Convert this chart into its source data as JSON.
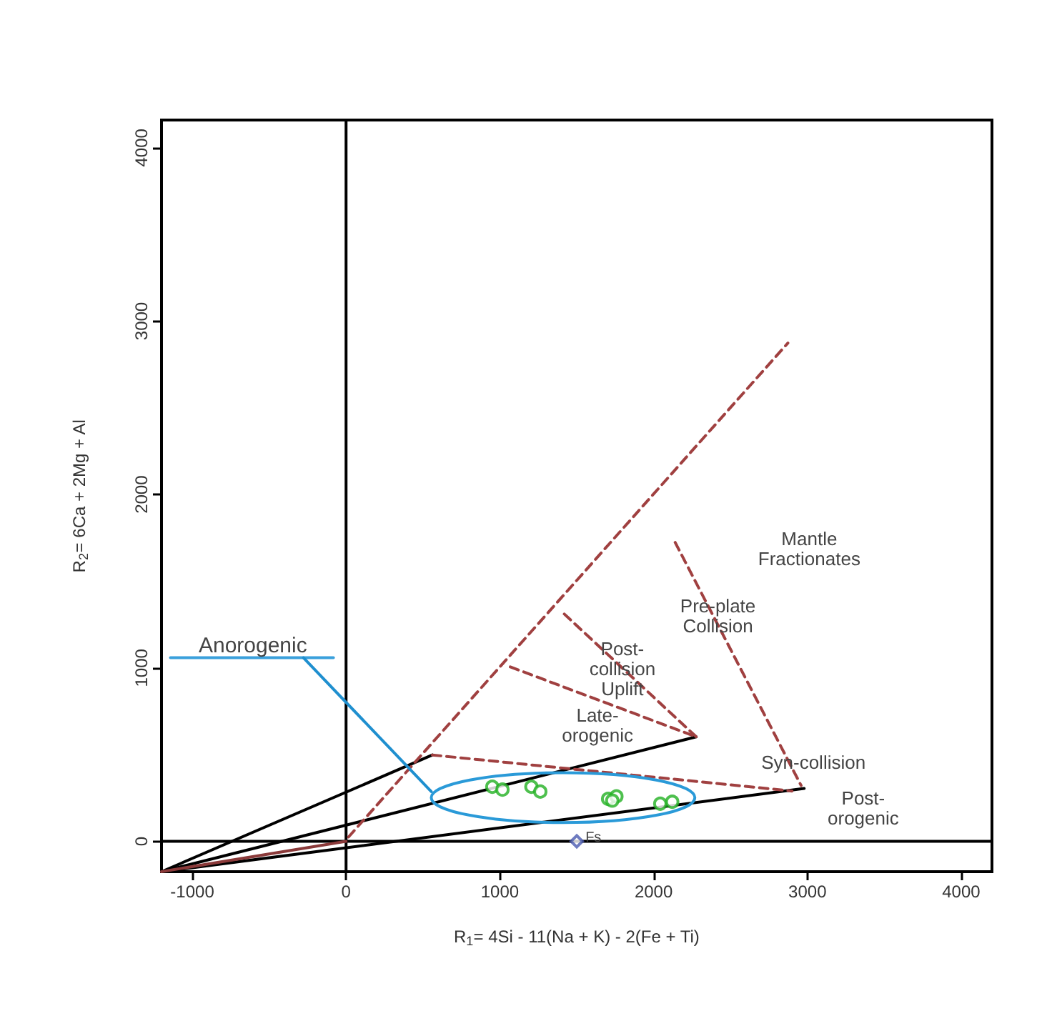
{
  "chart_data": {
    "type": "scatter",
    "xlabel": "R$_{1}$= 4Si - 11(Na + K) - 2(Fe + Ti)",
    "ylabel": "R$_{2}$= 6Ca + 2Mg + Al",
    "xlim": [
      -1200,
      4200
    ],
    "ylim": [
      -175,
      4160
    ],
    "xticks": [
      {
        "value": -1000,
        "label": "-1000"
      },
      {
        "value": 0,
        "label": "0"
      },
      {
        "value": 1000,
        "label": "1000"
      },
      {
        "value": 2000,
        "label": "2000"
      },
      {
        "value": 3000,
        "label": "3000"
      },
      {
        "value": 4000,
        "label": "4000"
      }
    ],
    "yticks": [
      {
        "value": 0,
        "label": "0"
      },
      {
        "value": 1000,
        "label": "1000"
      },
      {
        "value": 2000,
        "label": "2000"
      },
      {
        "value": 3000,
        "label": "3000"
      },
      {
        "value": 4000,
        "label": "4000"
      }
    ],
    "grid": false,
    "series": [
      {
        "type": "line",
        "color": "#000000",
        "line_style": "solid",
        "x": [
          0,
          0
        ],
        "values": [
          -175,
          4160
        ]
      },
      {
        "type": "line",
        "color": "#000000",
        "line_style": "solid",
        "x": [
          -1200,
          4200
        ],
        "values": [
          0,
          0
        ]
      },
      {
        "type": "line",
        "color": "#000000",
        "line_style": "solid",
        "x": [
          -1200,
          561
        ],
        "values": [
          -175,
          498
        ]
      },
      {
        "type": "line",
        "color": "#000000",
        "line_style": "solid",
        "x": [
          -1200,
          2277
        ],
        "values": [
          -175,
          603
        ]
      },
      {
        "type": "line",
        "color": "#000000",
        "line_style": "solid",
        "x": [
          -1200,
          2979
        ],
        "values": [
          -175,
          305
        ]
      },
      {
        "type": "line",
        "color": "#8b3a3a",
        "line_style": "solid",
        "x": [
          -1200,
          0
        ],
        "values": [
          -175,
          0
        ]
      },
      {
        "type": "line",
        "color": "#a04040",
        "line_style": "dashed",
        "x": [
          16,
          2873
        ],
        "values": [
          25,
          2874
        ]
      },
      {
        "type": "line",
        "color": "#a04040",
        "line_style": "dashed",
        "x": [
          561,
          2900
        ],
        "values": [
          498,
          290
        ]
      },
      {
        "type": "line",
        "color": "#a04040",
        "line_style": "dashed",
        "x": [
          1068,
          2277
        ],
        "values": [
          1006,
          603
        ]
      },
      {
        "type": "line",
        "color": "#a04040",
        "line_style": "dashed",
        "x": [
          1419,
          2277
        ],
        "values": [
          1311,
          603
        ]
      },
      {
        "type": "line",
        "color": "#a04040",
        "line_style": "dashed",
        "x": [
          2140,
          2959
        ],
        "values": [
          1724,
          322
        ]
      },
      {
        "type": "line",
        "color": "#3aa0dc",
        "line_style": "solid",
        "x": [
          -1142,
          -82
        ],
        "values": [
          1059,
          1059
        ]
      },
      {
        "type": "line",
        "color": "#1f8fcf",
        "line_style": "solid",
        "x": [
          -277,
          554
        ],
        "values": [
          1059,
          287
        ]
      },
      {
        "color": "#22b022",
        "marker": "circle",
        "x": [
          951,
          1017,
          1205,
          1263,
          1704,
          1758,
          1731,
          2043,
          2121
        ],
        "values": [
          315,
          298,
          315,
          287,
          245,
          259,
          235,
          217,
          228
        ]
      },
      {
        "color": "#4a5ab0",
        "marker": "diamond",
        "x": [
          1500
        ],
        "values": [
          0
        ]
      }
    ],
    "annotations": [
      "Anorogenic",
      "Mantle\nFractionates",
      "Pre-plate\nCollision",
      "Post-\ncollision\nUplift",
      "Late-\norogenic",
      "Syn-collision",
      "Post-\norogenic",
      "Fs"
    ]
  }
}
